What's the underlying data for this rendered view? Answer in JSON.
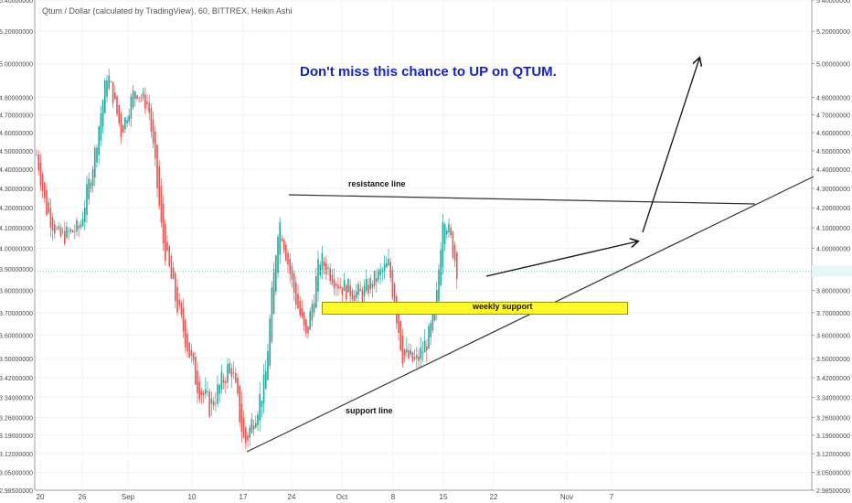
{
  "header": {
    "text": "Qtum / Dollar (calculated by TradingView), 60, BITTREX, Heikin Ashi"
  },
  "annotations": {
    "headline": "Don't miss this chance to UP on QTUM.",
    "resistance": "resistance line",
    "support": "support line",
    "weekly_support": "weekly support"
  },
  "colors": {
    "up": "#26a69a",
    "down": "#ef5350",
    "headline": "#1523c8",
    "zone": "#fff82a",
    "price_line": "#7ec6c6",
    "grid": "#f0f3f6"
  },
  "chart_data": {
    "type": "candlestick",
    "style": "Heikin Ashi",
    "symbol": "Qtum / Dollar",
    "timeframe": "60",
    "exchange": "BITTREX",
    "x_ticks": [
      "20",
      "26",
      "Sep",
      "10",
      "17",
      "24",
      "Oct",
      "8",
      "15",
      "22",
      "Nov",
      "7"
    ],
    "y_ticks": [
      5.4,
      5.2,
      5.0,
      4.8,
      4.7,
      4.6,
      4.5,
      4.4,
      4.3,
      4.2,
      4.1,
      4.0,
      3.9,
      3.8,
      3.7,
      3.6,
      3.5,
      3.42,
      3.34,
      3.26,
      3.19,
      3.12,
      3.05,
      2.985
    ],
    "y_axis_both_sides": true,
    "y_scale": "log",
    "last_price": 3.89,
    "grid": true,
    "anchors": [
      {
        "date": "Aug 18",
        "price": 4.62
      },
      {
        "date": "Aug 20",
        "price": 4.2
      },
      {
        "date": "Aug 22",
        "price": 4.05
      },
      {
        "date": "Aug 25",
        "price": 4.1
      },
      {
        "date": "Aug 27",
        "price": 4.45
      },
      {
        "date": "Aug 29",
        "price": 4.95
      },
      {
        "date": "Aug 31",
        "price": 4.6
      },
      {
        "date": "Sep 2",
        "price": 4.85
      },
      {
        "date": "Sep 4",
        "price": 4.75
      },
      {
        "date": "Sep 6",
        "price": 4.05
      },
      {
        "date": "Sep 8",
        "price": 3.75
      },
      {
        "date": "Sep 11",
        "price": 3.4
      },
      {
        "date": "Sep 13",
        "price": 3.3
      },
      {
        "date": "Sep 16",
        "price": 3.48
      },
      {
        "date": "Sep 18",
        "price": 3.15
      },
      {
        "date": "Sep 21",
        "price": 3.4
      },
      {
        "date": "Sep 23",
        "price": 4.15
      },
      {
        "date": "Sep 25",
        "price": 3.82
      },
      {
        "date": "Sep 27",
        "price": 3.58
      },
      {
        "date": "Sep 29",
        "price": 3.95
      },
      {
        "date": "Oct 2",
        "price": 3.82
      },
      {
        "date": "Oct 5",
        "price": 3.78
      },
      {
        "date": "Oct 9",
        "price": 3.92
      },
      {
        "date": "Oct 11",
        "price": 3.52
      },
      {
        "date": "Oct 13",
        "price": 3.48
      },
      {
        "date": "Oct 15",
        "price": 3.6
      },
      {
        "date": "Oct 16",
        "price": 3.75
      },
      {
        "date": "Oct 17",
        "price": 4.2
      },
      {
        "date": "Oct 19",
        "price": 3.9
      }
    ]
  }
}
